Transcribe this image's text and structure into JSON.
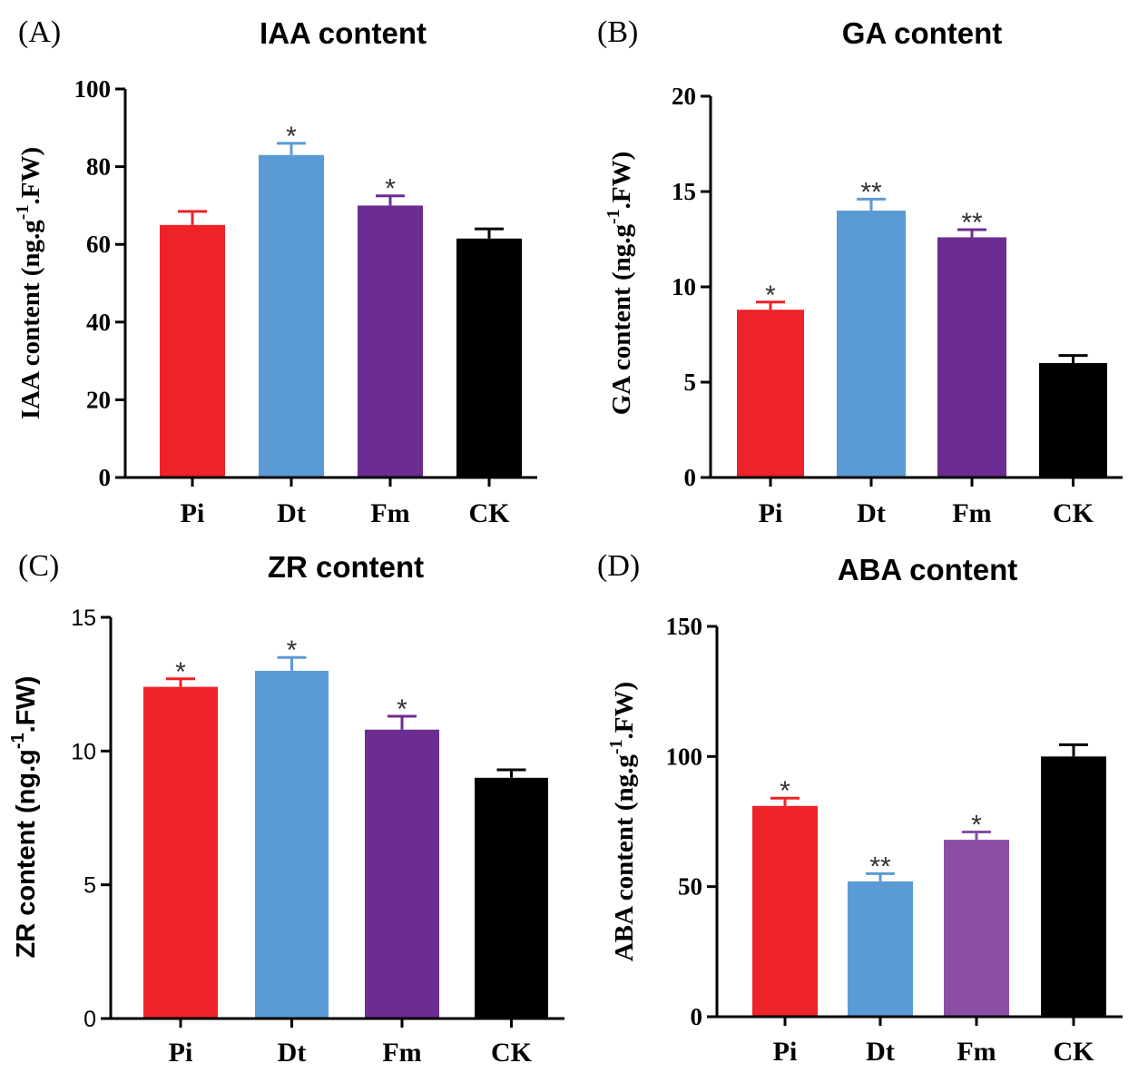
{
  "chart_data": [
    {
      "type": "bar",
      "panel": "(A)",
      "title": "IAA content",
      "ylabel": "IAA content (ng.g-1.FW)",
      "ylabel_parts": {
        "main": "IAA content (ng.g",
        "sup": "-1",
        "tail": ".FW)"
      },
      "categories": [
        "Pi",
        "Dt",
        "Fm",
        "CK"
      ],
      "values": [
        65,
        83,
        70,
        61.5
      ],
      "errors": [
        3.5,
        3,
        2.5,
        2.5
      ],
      "significance": [
        "",
        "*",
        "*",
        ""
      ],
      "ylim": [
        0,
        100
      ],
      "yticks": [
        0,
        20,
        40,
        60,
        80,
        100
      ],
      "ytick_labels": [
        "0",
        "20",
        "40",
        "60",
        "80",
        "100"
      ],
      "colors": [
        "#ee2229",
        "#5b9bd5",
        "#6d2c91",
        "#000000"
      ]
    },
    {
      "type": "bar",
      "panel": "(B)",
      "title": "GA   content",
      "ylabel": "GA  content (ng.g-1.FW)",
      "ylabel_parts": {
        "main": "GA  content (ng.g",
        "sup": "-1",
        "tail": ".FW)"
      },
      "categories": [
        "Pi",
        "Dt",
        "Fm",
        "CK"
      ],
      "values": [
        8.8,
        14,
        12.6,
        6
      ],
      "errors": [
        0.4,
        0.6,
        0.4,
        0.4
      ],
      "significance": [
        "*",
        "**",
        "**",
        ""
      ],
      "ylim": [
        0,
        20
      ],
      "yticks": [
        0,
        5,
        10,
        15,
        20
      ],
      "ytick_labels": [
        "0",
        "5",
        "10",
        "15",
        "20"
      ],
      "colors": [
        "#ee2229",
        "#5b9bd5",
        "#6d2c91",
        "#000000"
      ]
    },
    {
      "type": "bar",
      "panel": "(C)",
      "title": "ZR content",
      "ylabel": "ZR content (ng.g-1.FW)",
      "ylabel_parts": {
        "main": "ZR content (ng.g",
        "sup": "-1",
        "tail": ".FW)"
      },
      "categories": [
        "Pi",
        "Dt",
        "Fm",
        "CK"
      ],
      "values": [
        12.4,
        13,
        10.8,
        9
      ],
      "errors": [
        0.3,
        0.5,
        0.5,
        0.3
      ],
      "significance": [
        "*",
        "*",
        "*",
        ""
      ],
      "ylim": [
        0,
        15
      ],
      "yticks": [
        0,
        5,
        10,
        15
      ],
      "ytick_labels": [
        "0",
        "5",
        "10",
        "15"
      ],
      "colors": [
        "#ee2229",
        "#5b9bd5",
        "#6d2c91",
        "#000000"
      ]
    },
    {
      "type": "bar",
      "panel": "(D)",
      "title": "ABA content",
      "ylabel": "ABA content (ng.g-1.FW)",
      "ylabel_parts": {
        "main": "ABA content (ng.g",
        "sup": "-1",
        "tail": ".FW)"
      },
      "categories": [
        "Pi",
        "Dt",
        "Fm",
        "CK"
      ],
      "values": [
        81,
        52,
        68,
        100
      ],
      "errors": [
        3,
        3,
        3,
        4.5
      ],
      "significance": [
        "*",
        "**",
        "*",
        ""
      ],
      "ylim": [
        0,
        150
      ],
      "yticks": [
        0,
        50,
        100,
        150
      ],
      "ytick_labels": [
        "0",
        "50",
        "100",
        "150"
      ],
      "colors": [
        "#ee2229",
        "#5b9bd5",
        "#8a4ea5",
        "#000000"
      ]
    }
  ]
}
